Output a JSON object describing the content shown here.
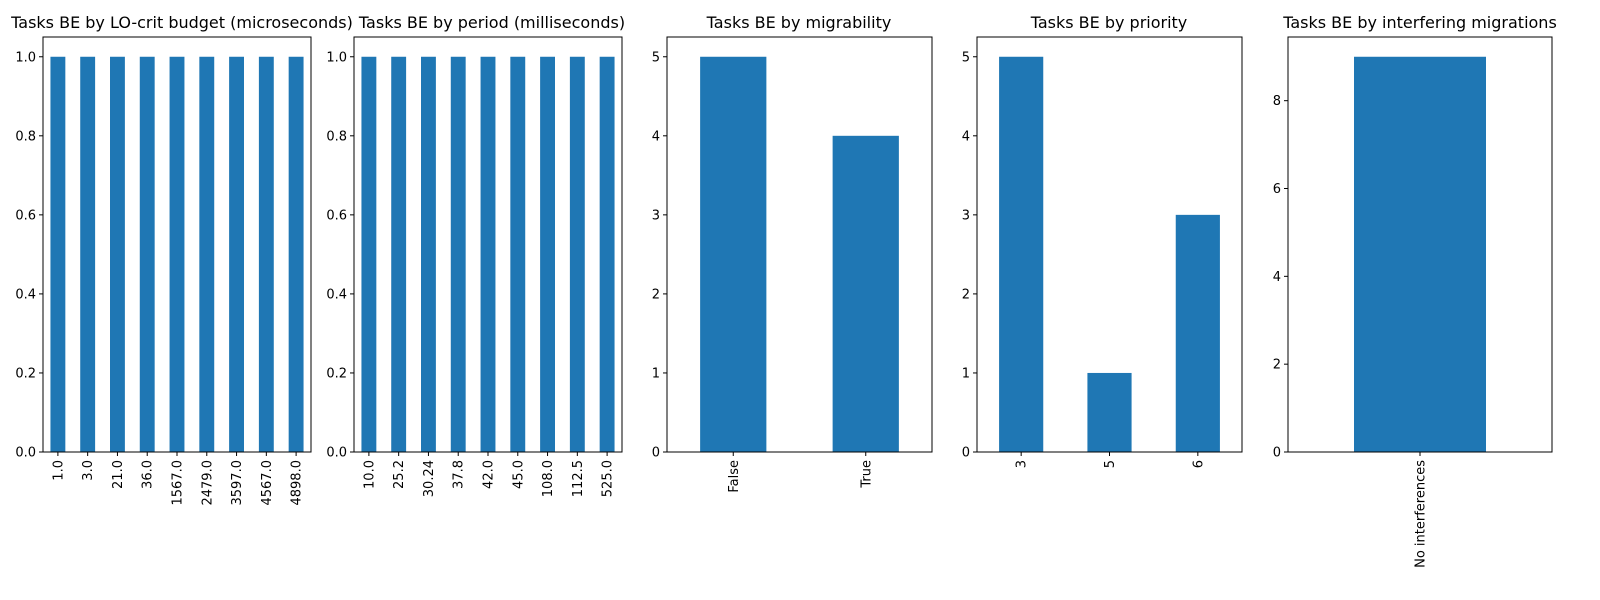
{
  "colors": {
    "bar": "#1f77b4",
    "frame": "#000000",
    "background": "#ffffff"
  },
  "chart_data": [
    {
      "type": "bar",
      "title": "Tasks BE by LO-crit budget (microseconds)",
      "categories": [
        "1.0",
        "3.0",
        "21.0",
        "36.0",
        "1567.0",
        "2479.0",
        "3597.0",
        "4567.0",
        "4898.0"
      ],
      "values": [
        1,
        1,
        1,
        1,
        1,
        1,
        1,
        1,
        1
      ],
      "ylim": [
        0,
        1.05
      ],
      "yticks": [
        0.0,
        0.2,
        0.4,
        0.6,
        0.8,
        1.0
      ],
      "ytick_labels": [
        "0.0",
        "0.2",
        "0.4",
        "0.6",
        "0.8",
        "1.0"
      ],
      "xtick_rotation": "vertical",
      "grid": false
    },
    {
      "type": "bar",
      "title": "Tasks BE by period (milliseconds)",
      "categories": [
        "10.0",
        "25.2",
        "30.24",
        "37.8",
        "42.0",
        "45.0",
        "108.0",
        "112.5",
        "525.0"
      ],
      "values": [
        1,
        1,
        1,
        1,
        1,
        1,
        1,
        1,
        1
      ],
      "ylim": [
        0,
        1.05
      ],
      "yticks": [
        0.0,
        0.2,
        0.4,
        0.6,
        0.8,
        1.0
      ],
      "ytick_labels": [
        "0.0",
        "0.2",
        "0.4",
        "0.6",
        "0.8",
        "1.0"
      ],
      "xtick_rotation": "vertical",
      "grid": false
    },
    {
      "type": "bar",
      "title": "Tasks BE by migrability",
      "categories": [
        "False",
        "True"
      ],
      "values": [
        5,
        4
      ],
      "ylim": [
        0,
        5.25
      ],
      "yticks": [
        0,
        1,
        2,
        3,
        4,
        5
      ],
      "ytick_labels": [
        "0",
        "1",
        "2",
        "3",
        "4",
        "5"
      ],
      "xtick_rotation": "vertical",
      "grid": false
    },
    {
      "type": "bar",
      "title": "Tasks BE by priority",
      "categories": [
        "3",
        "5",
        "6"
      ],
      "values": [
        5,
        1,
        3
      ],
      "ylim": [
        0,
        5.25
      ],
      "yticks": [
        0,
        1,
        2,
        3,
        4,
        5
      ],
      "ytick_labels": [
        "0",
        "1",
        "2",
        "3",
        "4",
        "5"
      ],
      "xtick_rotation": "vertical",
      "grid": false
    },
    {
      "type": "bar",
      "title": "Tasks BE by interfering migrations",
      "categories": [
        "No interferences"
      ],
      "values": [
        9
      ],
      "ylim": [
        0,
        9.45
      ],
      "yticks": [
        0,
        2,
        4,
        6,
        8
      ],
      "ytick_labels": [
        "0",
        "2",
        "4",
        "6",
        "8"
      ],
      "xtick_rotation": "vertical",
      "grid": false
    }
  ]
}
